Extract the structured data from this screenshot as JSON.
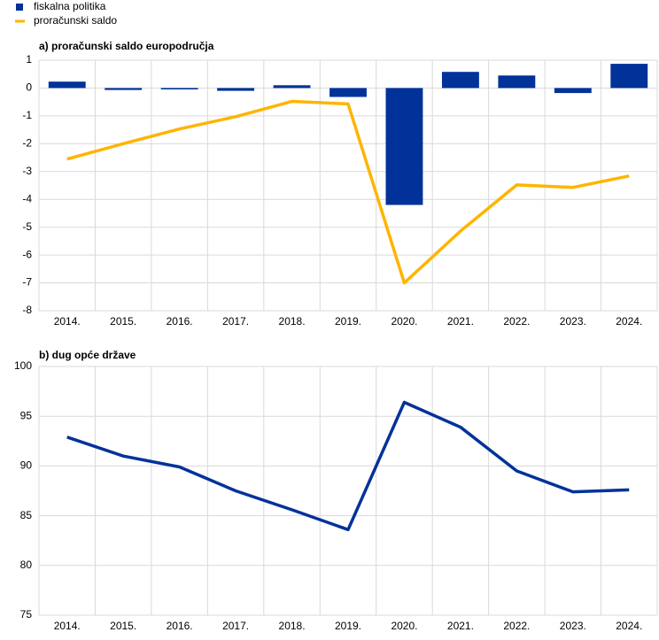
{
  "chart_data": [
    {
      "type": "bar",
      "title": "a) proračunski saldo europodručja",
      "legend": "top-left",
      "grid": true,
      "categories": [
        "2014.",
        "2015.",
        "2016.",
        "2017.",
        "2018.",
        "2019.",
        "2020.",
        "2021.",
        "2022.",
        "2023.",
        "2024."
      ],
      "series": [
        {
          "name": "fiskalna politika",
          "type": "bar",
          "color": "#003299",
          "values": [
            0.23,
            -0.07,
            -0.05,
            -0.1,
            0.1,
            -0.32,
            -4.2,
            0.58,
            0.45,
            -0.18,
            0.87
          ]
        },
        {
          "name": "proračunski saldo",
          "type": "line",
          "color": "#ffb400",
          "values": [
            -2.55,
            -2.0,
            -1.47,
            -1.03,
            -0.48,
            -0.57,
            -7.0,
            -5.14,
            -3.48,
            -3.57,
            -3.16
          ]
        }
      ],
      "ylim": [
        -8,
        1
      ],
      "yticks": [
        -8,
        -7,
        -6,
        -5,
        -4,
        -3,
        -2,
        -1,
        0,
        1
      ]
    },
    {
      "type": "line",
      "title": "b) dug opće države",
      "grid": true,
      "color": "#003299",
      "categories": [
        "2014.",
        "2015.",
        "2016.",
        "2017.",
        "2018.",
        "2019.",
        "2020.",
        "2021.",
        "2022.",
        "2023.",
        "2024."
      ],
      "values": [
        92.9,
        91.0,
        89.9,
        87.5,
        85.6,
        83.6,
        96.4,
        93.9,
        89.5,
        87.4,
        87.6
      ],
      "ylim": [
        75,
        100
      ],
      "yticks": [
        75,
        80,
        85,
        90,
        95,
        100
      ]
    }
  ]
}
